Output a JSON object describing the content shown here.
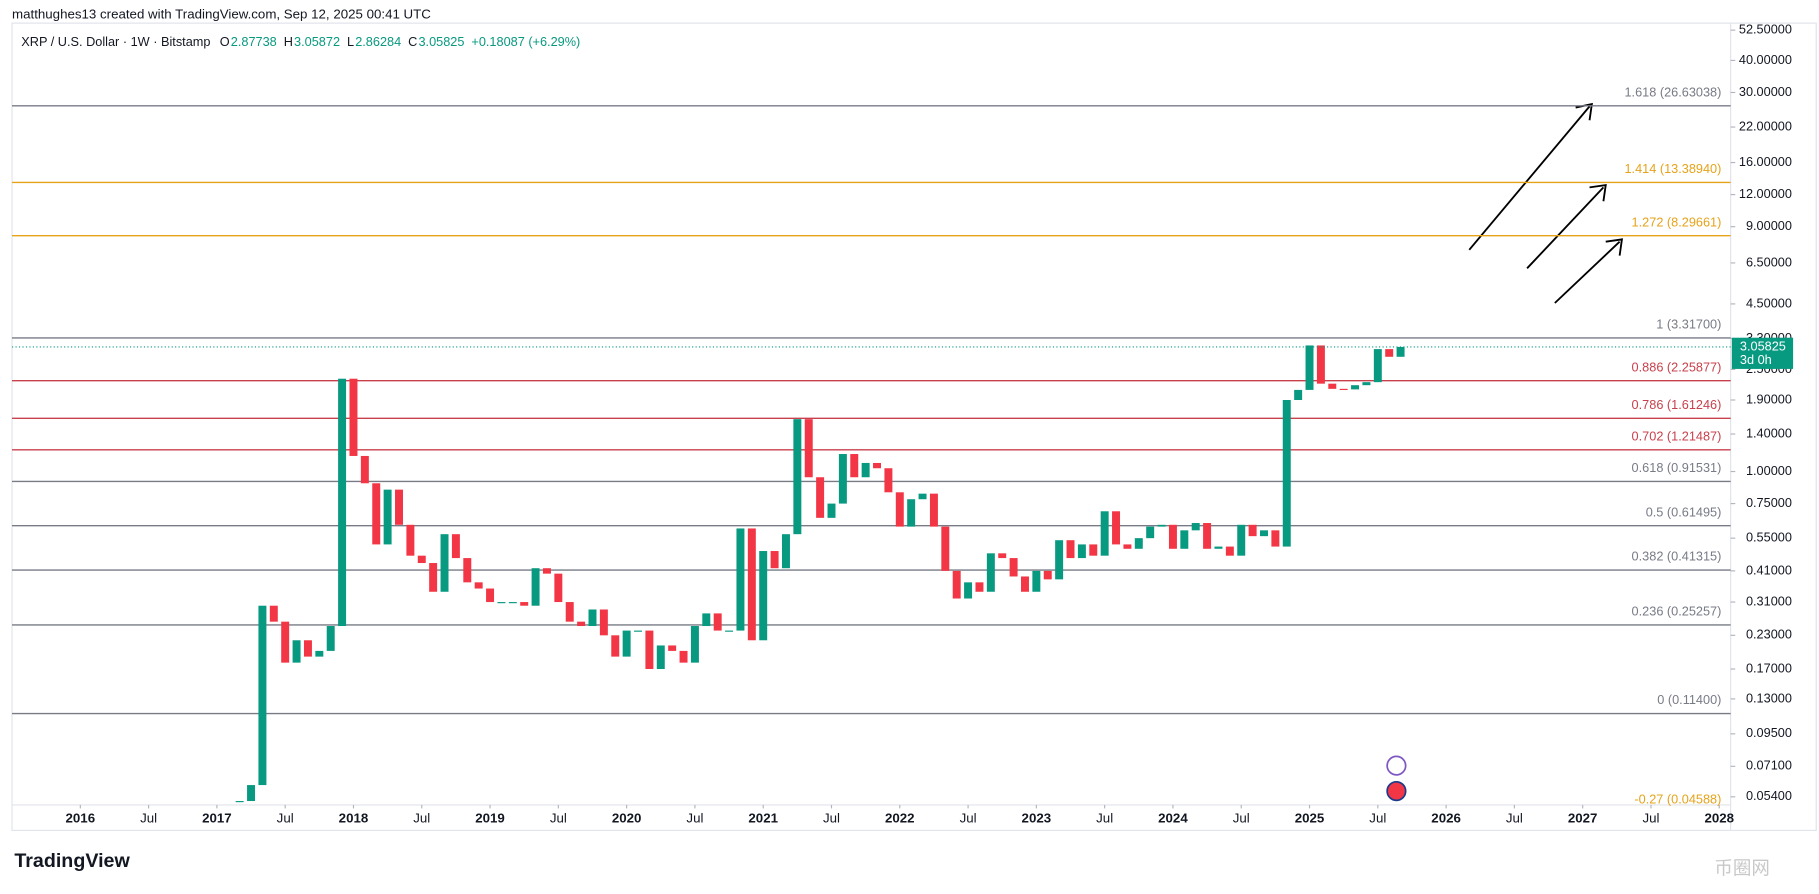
{
  "header": {
    "credit": "matthughes13 created with TradingView.com, Sep 12, 2025 00:41 UTC",
    "symbol": "XRP / U.S. Dollar · 1W · Bitstamp",
    "ohlc": [
      {
        "key": "O",
        "value": 2.87738
      },
      {
        "key": "H",
        "value": 3.05872
      },
      {
        "key": "L",
        "value": 2.86284
      },
      {
        "key": "C",
        "value": 3.05825
      }
    ],
    "change": "+0.18087 (+6.29%)"
  },
  "countdown": "3d 0h",
  "brand": "TradingView",
  "watermark": "币圈网",
  "chart_data": {
    "type": "candlestick",
    "log_scale": true,
    "up_color": "#089981",
    "down_color": "#f23645",
    "x": [
      "2017-03",
      "2017-04",
      "2017-05",
      "2017-06",
      "2017-07",
      "2017-08",
      "2017-09",
      "2017-10",
      "2017-11",
      "2017-12",
      "2018-01",
      "2018-02",
      "2018-03",
      "2018-04",
      "2018-05",
      "2018-06",
      "2018-07",
      "2018-08",
      "2018-09",
      "2018-10",
      "2018-11",
      "2018-12",
      "2019-01",
      "2019-02",
      "2019-03",
      "2019-04",
      "2019-05",
      "2019-06",
      "2019-07",
      "2019-08",
      "2019-09",
      "2019-10",
      "2019-11",
      "2019-12",
      "2020-01",
      "2020-02",
      "2020-03",
      "2020-04",
      "2020-05",
      "2020-06",
      "2020-07",
      "2020-08",
      "2020-09",
      "2020-10",
      "2020-11",
      "2020-12",
      "2021-01",
      "2021-02",
      "2021-03",
      "2021-04",
      "2021-05",
      "2021-06",
      "2021-07",
      "2021-08",
      "2021-09",
      "2021-10",
      "2021-11",
      "2021-12",
      "2022-01",
      "2022-02",
      "2022-03",
      "2022-04",
      "2022-05",
      "2022-06",
      "2022-07",
      "2022-08",
      "2022-09",
      "2022-10",
      "2022-11",
      "2022-12",
      "2023-01",
      "2023-02",
      "2023-03",
      "2023-04",
      "2023-05",
      "2023-06",
      "2023-07",
      "2023-08",
      "2023-09",
      "2023-10",
      "2023-11",
      "2023-12",
      "2024-01",
      "2024-02",
      "2024-03",
      "2024-04",
      "2024-05",
      "2024-06",
      "2024-07",
      "2024-08",
      "2024-09",
      "2024-10",
      "2024-11",
      "2024-12",
      "2025-01",
      "2025-02",
      "2025-03",
      "2025-04",
      "2025-05",
      "2025-06",
      "2025-07",
      "2025-08",
      "2025-09"
    ],
    "close": [
      0.052,
      0.06,
      0.3,
      0.26,
      0.18,
      0.22,
      0.19,
      0.2,
      0.25,
      2.3,
      1.15,
      0.9,
      0.52,
      0.85,
      0.62,
      0.47,
      0.44,
      0.34,
      0.57,
      0.46,
      0.37,
      0.35,
      0.31,
      0.31,
      0.31,
      0.3,
      0.42,
      0.4,
      0.31,
      0.26,
      0.25,
      0.29,
      0.23,
      0.19,
      0.24,
      0.24,
      0.17,
      0.21,
      0.2,
      0.18,
      0.25,
      0.28,
      0.24,
      0.24,
      0.6,
      0.22,
      0.49,
      0.42,
      0.57,
      1.6,
      0.95,
      0.66,
      0.75,
      1.17,
      0.95,
      1.08,
      1.03,
      0.83,
      0.61,
      0.78,
      0.82,
      0.61,
      0.41,
      0.32,
      0.37,
      0.34,
      0.48,
      0.46,
      0.39,
      0.34,
      0.41,
      0.38,
      0.54,
      0.46,
      0.52,
      0.47,
      0.7,
      0.52,
      0.5,
      0.55,
      0.61,
      0.62,
      0.5,
      0.59,
      0.63,
      0.5,
      0.51,
      0.47,
      0.62,
      0.56,
      0.59,
      0.51,
      1.9,
      2.08,
      3.1,
      2.2,
      2.1,
      2.09,
      2.17,
      2.23,
      3.0,
      2.8,
      3.05825
    ],
    "xlim": [
      "2015-07",
      "2028-02"
    ],
    "xticks": [
      {
        "value": "2016-01",
        "label": "2016"
      },
      {
        "value": "2016-07",
        "label": "Jul"
      },
      {
        "value": "2017-01",
        "label": "2017"
      },
      {
        "value": "2017-07",
        "label": "Jul"
      },
      {
        "value": "2018-01",
        "label": "2018"
      },
      {
        "value": "2018-07",
        "label": "Jul"
      },
      {
        "value": "2019-01",
        "label": "2019"
      },
      {
        "value": "2019-07",
        "label": "Jul"
      },
      {
        "value": "2020-01",
        "label": "2020"
      },
      {
        "value": "2020-07",
        "label": "Jul"
      },
      {
        "value": "2021-01",
        "label": "2021"
      },
      {
        "value": "2021-07",
        "label": "Jul"
      },
      {
        "value": "2022-01",
        "label": "2022"
      },
      {
        "value": "2022-07",
        "label": "Jul"
      },
      {
        "value": "2023-01",
        "label": "2023"
      },
      {
        "value": "2023-07",
        "label": "Jul"
      },
      {
        "value": "2024-01",
        "label": "2024"
      },
      {
        "value": "2024-07",
        "label": "Jul"
      },
      {
        "value": "2025-01",
        "label": "2025"
      },
      {
        "value": "2025-07",
        "label": "Jul"
      },
      {
        "value": "2026-01",
        "label": "2026"
      },
      {
        "value": "2026-07",
        "label": "Jul"
      },
      {
        "value": "2027-01",
        "label": "2027"
      },
      {
        "value": "2027-07",
        "label": "Jul"
      },
      {
        "value": "2028-01",
        "label": "2028"
      }
    ],
    "ylim": [
      0.0502,
      55.9
    ],
    "yticks": [
      {
        "value": 52.5,
        "label": "52.50000"
      },
      {
        "value": 40,
        "label": "40.00000"
      },
      {
        "value": 30,
        "label": "30.00000"
      },
      {
        "value": 22,
        "label": "22.00000"
      },
      {
        "value": 16,
        "label": "16.00000"
      },
      {
        "value": 12,
        "label": "12.00000"
      },
      {
        "value": 9,
        "label": "9.00000"
      },
      {
        "value": 6.5,
        "label": "6.50000"
      },
      {
        "value": 4.5,
        "label": "4.50000"
      },
      {
        "value": 3.3,
        "label": "3.30000"
      },
      {
        "value": 2.5,
        "label": "2.50000"
      },
      {
        "value": 1.9,
        "label": "1.90000"
      },
      {
        "value": 1.4,
        "label": "1.40000"
      },
      {
        "value": 1,
        "label": "1.00000"
      },
      {
        "value": 0.75,
        "label": "0.75000"
      },
      {
        "value": 0.55,
        "label": "0.55000"
      },
      {
        "value": 0.41,
        "label": "0.41000"
      },
      {
        "value": 0.31,
        "label": "0.31000"
      },
      {
        "value": 0.23,
        "label": "0.23000"
      },
      {
        "value": 0.17,
        "label": "0.17000"
      },
      {
        "value": 0.13,
        "label": "0.13000"
      },
      {
        "value": 0.095,
        "label": "0.09500"
      },
      {
        "value": 0.071,
        "label": "0.07100"
      },
      {
        "value": 0.054,
        "label": "0.05400"
      }
    ],
    "fib_levels": [
      {
        "label": "1.618 (26.63038)",
        "price": 26.63038,
        "color": "#787b86"
      },
      {
        "label": "1.414 (13.38940)",
        "price": 13.3894,
        "color": "#e6a31a"
      },
      {
        "label": "1.272 (8.29661)",
        "price": 8.29661,
        "color": "#e6a31a"
      },
      {
        "label": "1 (3.31700)",
        "price": 3.317,
        "color": "#787b86"
      },
      {
        "label": "0.886 (2.25877)",
        "price": 2.25877,
        "color": "#c8404c"
      },
      {
        "label": "0.786 (1.61246)",
        "price": 1.61246,
        "color": "#c8404c"
      },
      {
        "label": "0.702 (1.21487)",
        "price": 1.21487,
        "color": "#c8404c"
      },
      {
        "label": "0.618 (0.91531)",
        "price": 0.91531,
        "color": "#787b86"
      },
      {
        "label": "0.5 (0.61495)",
        "price": 0.61495,
        "color": "#787b86"
      },
      {
        "label": "0.382 (0.41315)",
        "price": 0.41315,
        "color": "#787b86"
      },
      {
        "label": "0.236 (0.25257)",
        "price": 0.25257,
        "color": "#787b86"
      },
      {
        "label": "0 (0.11400)",
        "price": 0.114,
        "color": "#787b86"
      },
      {
        "label": "-0.27 (0.04588)",
        "price": 0.04588,
        "color": "#e6a31a"
      }
    ]
  }
}
